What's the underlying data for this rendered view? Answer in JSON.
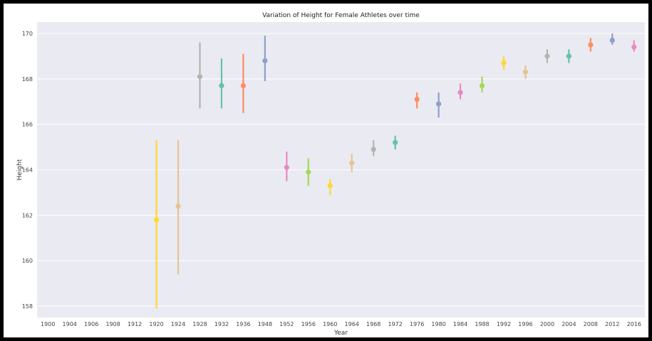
{
  "chart_data": {
    "type": "scatter",
    "title": "Variation of Height for Female Athletes over time",
    "xlabel": "Year",
    "ylabel": "Height",
    "grid": true,
    "ylim": [
      157.5,
      170.5
    ],
    "yticks": [
      158,
      160,
      162,
      164,
      166,
      168,
      170
    ],
    "categories": [
      "1900",
      "1904",
      "1906",
      "1908",
      "1912",
      "1920",
      "1924",
      "1928",
      "1932",
      "1936",
      "1948",
      "1952",
      "1956",
      "1960",
      "1964",
      "1968",
      "1972",
      "1976",
      "1980",
      "1984",
      "1988",
      "1992",
      "1996",
      "2000",
      "2004",
      "2008",
      "2012",
      "2016"
    ],
    "points": [
      {
        "year": "1920",
        "mean": 161.8,
        "low": 157.9,
        "high": 165.3,
        "color": "#ffd92f"
      },
      {
        "year": "1924",
        "mean": 162.4,
        "low": 159.4,
        "high": 165.3,
        "color": "#e5c494"
      },
      {
        "year": "1928",
        "mean": 168.1,
        "low": 166.7,
        "high": 169.6,
        "color": "#b3b3b3"
      },
      {
        "year": "1932",
        "mean": 167.7,
        "low": 166.7,
        "high": 168.9,
        "color": "#66c2a5"
      },
      {
        "year": "1936",
        "mean": 167.7,
        "low": 166.5,
        "high": 169.1,
        "color": "#fc8d62"
      },
      {
        "year": "1948",
        "mean": 168.8,
        "low": 167.9,
        "high": 169.9,
        "color": "#8da0cb"
      },
      {
        "year": "1952",
        "mean": 164.1,
        "low": 163.5,
        "high": 164.8,
        "color": "#e78ac3"
      },
      {
        "year": "1956",
        "mean": 163.9,
        "low": 163.3,
        "high": 164.5,
        "color": "#a6d854"
      },
      {
        "year": "1960",
        "mean": 163.3,
        "low": 162.9,
        "high": 163.6,
        "color": "#ffd92f"
      },
      {
        "year": "1964",
        "mean": 164.3,
        "low": 163.9,
        "high": 164.7,
        "color": "#e5c494"
      },
      {
        "year": "1968",
        "mean": 164.9,
        "low": 164.6,
        "high": 165.3,
        "color": "#b3b3b3"
      },
      {
        "year": "1972",
        "mean": 165.2,
        "low": 164.9,
        "high": 165.5,
        "color": "#66c2a5"
      },
      {
        "year": "1976",
        "mean": 167.1,
        "low": 166.7,
        "high": 167.4,
        "color": "#fc8d62"
      },
      {
        "year": "1980",
        "mean": 166.9,
        "low": 166.3,
        "high": 167.4,
        "color": "#8da0cb"
      },
      {
        "year": "1984",
        "mean": 167.4,
        "low": 167.1,
        "high": 167.8,
        "color": "#e78ac3"
      },
      {
        "year": "1988",
        "mean": 167.7,
        "low": 167.4,
        "high": 168.1,
        "color": "#a6d854"
      },
      {
        "year": "1992",
        "mean": 168.7,
        "low": 168.4,
        "high": 169.0,
        "color": "#ffd92f"
      },
      {
        "year": "1996",
        "mean": 168.3,
        "low": 168.0,
        "high": 168.6,
        "color": "#e5c494"
      },
      {
        "year": "2000",
        "mean": 169.0,
        "low": 168.7,
        "high": 169.3,
        "color": "#b3b3b3"
      },
      {
        "year": "2004",
        "mean": 169.0,
        "low": 168.7,
        "high": 169.3,
        "color": "#66c2a5"
      },
      {
        "year": "2008",
        "mean": 169.5,
        "low": 169.2,
        "high": 169.8,
        "color": "#fc8d62"
      },
      {
        "year": "2012",
        "mean": 169.7,
        "low": 169.5,
        "high": 170.0,
        "color": "#8da0cb"
      },
      {
        "year": "2016",
        "mean": 169.4,
        "low": 169.2,
        "high": 169.7,
        "color": "#e78ac3"
      }
    ]
  }
}
